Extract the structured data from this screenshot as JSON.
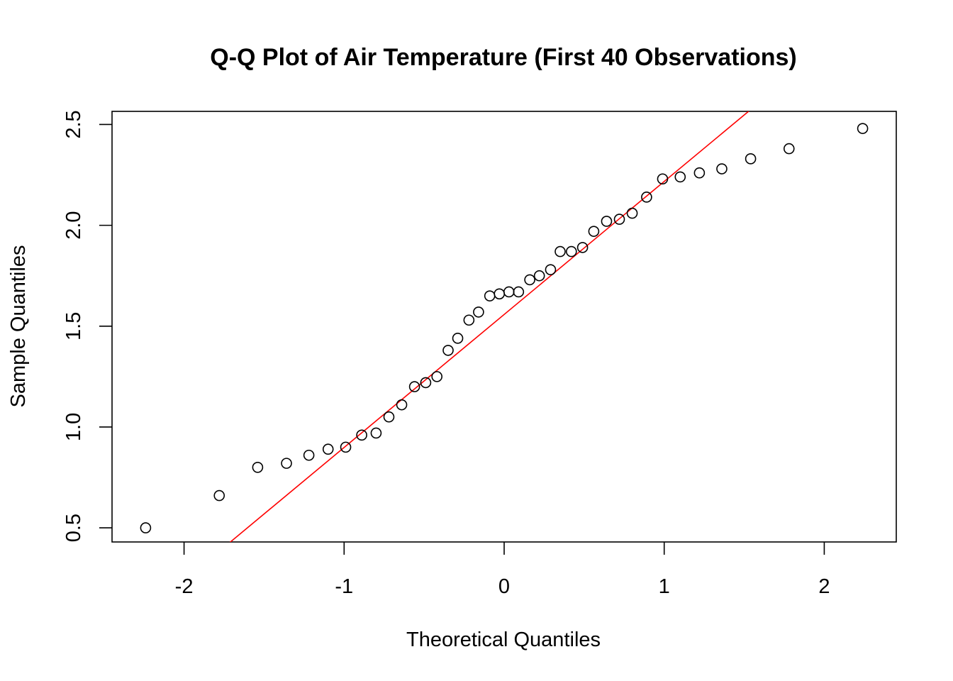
{
  "chart_data": {
    "type": "scatter",
    "title": "Q-Q Plot of Air Temperature (First 40 Observations)",
    "xlabel": "Theoretical Quantiles",
    "ylabel": "Sample Quantiles",
    "xlim": [
      -2.45,
      2.45
    ],
    "ylim": [
      0.43,
      2.565
    ],
    "xticks": [
      -2,
      -1,
      0,
      1,
      2
    ],
    "xtick_labels": [
      "-2",
      "-1",
      "0",
      "1",
      "2"
    ],
    "yticks": [
      0.5,
      1.0,
      1.5,
      2.0,
      2.5
    ],
    "ytick_labels": [
      "0.5",
      "1.0",
      "1.5",
      "2.0",
      "2.5"
    ],
    "grid": false,
    "point_color": "#000000",
    "line_color": "#ff0000",
    "points": [
      {
        "x": -2.24,
        "y": 0.5
      },
      {
        "x": -1.78,
        "y": 0.66
      },
      {
        "x": -1.54,
        "y": 0.8
      },
      {
        "x": -1.36,
        "y": 0.82
      },
      {
        "x": -1.22,
        "y": 0.86
      },
      {
        "x": -1.1,
        "y": 0.89
      },
      {
        "x": -0.99,
        "y": 0.9
      },
      {
        "x": -0.89,
        "y": 0.96
      },
      {
        "x": -0.8,
        "y": 0.97
      },
      {
        "x": -0.72,
        "y": 1.05
      },
      {
        "x": -0.64,
        "y": 1.11
      },
      {
        "x": -0.56,
        "y": 1.2
      },
      {
        "x": -0.49,
        "y": 1.22
      },
      {
        "x": -0.42,
        "y": 1.25
      },
      {
        "x": -0.35,
        "y": 1.38
      },
      {
        "x": -0.29,
        "y": 1.44
      },
      {
        "x": -0.22,
        "y": 1.53
      },
      {
        "x": -0.16,
        "y": 1.57
      },
      {
        "x": -0.09,
        "y": 1.65
      },
      {
        "x": -0.03,
        "y": 1.66
      },
      {
        "x": 0.03,
        "y": 1.67
      },
      {
        "x": 0.09,
        "y": 1.67
      },
      {
        "x": 0.16,
        "y": 1.73
      },
      {
        "x": 0.22,
        "y": 1.75
      },
      {
        "x": 0.29,
        "y": 1.78
      },
      {
        "x": 0.35,
        "y": 1.87
      },
      {
        "x": 0.42,
        "y": 1.87
      },
      {
        "x": 0.49,
        "y": 1.89
      },
      {
        "x": 0.56,
        "y": 1.97
      },
      {
        "x": 0.64,
        "y": 2.02
      },
      {
        "x": 0.72,
        "y": 2.03
      },
      {
        "x": 0.8,
        "y": 2.06
      },
      {
        "x": 0.89,
        "y": 2.14
      },
      {
        "x": 0.99,
        "y": 2.23
      },
      {
        "x": 1.1,
        "y": 2.24
      },
      {
        "x": 1.22,
        "y": 2.26
      },
      {
        "x": 1.36,
        "y": 2.28
      },
      {
        "x": 1.54,
        "y": 2.33
      },
      {
        "x": 1.78,
        "y": 2.38
      },
      {
        "x": 2.24,
        "y": 2.48
      }
    ],
    "reference_line": {
      "intercept": 1.558,
      "slope": 0.6595
    }
  }
}
